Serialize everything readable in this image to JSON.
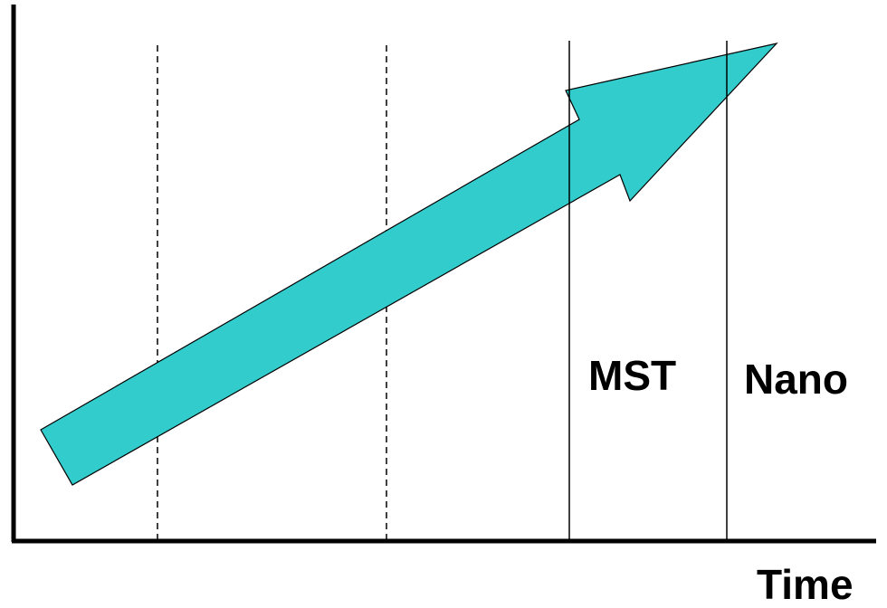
{
  "diagram": {
    "region_labels": [
      "MST",
      "Nano"
    ],
    "x_axis_label": "Time",
    "colors": {
      "arrow_fill": "#33CCCC",
      "line": "#000000",
      "background": "#FFFFFF"
    }
  }
}
